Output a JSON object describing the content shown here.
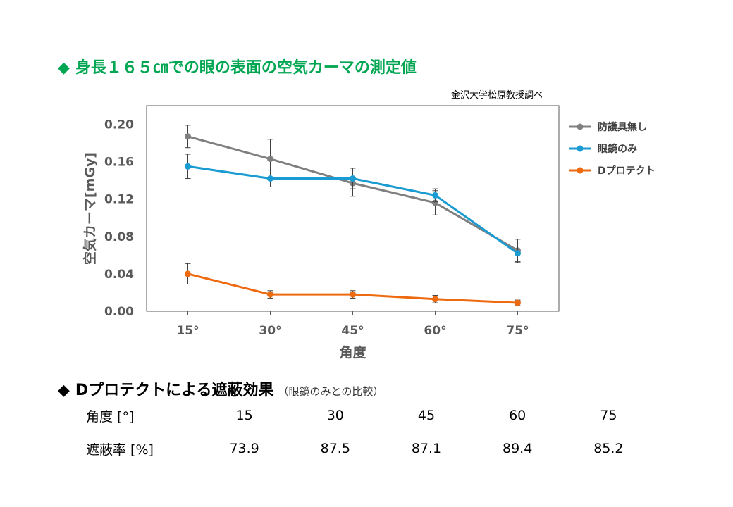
{
  "title": "身長１６５㎝での眼の表面の空気カーマの測定値",
  "title_marker": "◆",
  "source_note": "金沢大学松原教授調べ",
  "colors": {
    "title_green": "#00a651",
    "series_gray": "#808080",
    "series_blue": "#1a9bd1",
    "series_orange": "#ee6a10"
  },
  "chart_data": {
    "type": "line",
    "xlabel": "角度",
    "ylabel": "空気カーマ[mGy]",
    "categories": [
      "15°",
      "30°",
      "45°",
      "60°",
      "75°"
    ],
    "ylim": [
      0,
      0.22
    ],
    "yticks": [
      "0.00",
      "0.04",
      "0.08",
      "0.12",
      "0.16",
      "0.20"
    ],
    "ytick_values": [
      0,
      0.04,
      0.08,
      0.12,
      0.16,
      0.2
    ],
    "legend_position": "right",
    "grid": false,
    "series": [
      {
        "name": "防護具無し",
        "color": "#808080",
        "values": [
          0.187,
          0.163,
          0.137,
          0.116,
          0.065
        ],
        "errors": [
          0.012,
          0.021,
          0.014,
          0.013,
          0.012
        ]
      },
      {
        "name": "眼鏡のみ",
        "color": "#1a9bd1",
        "values": [
          0.155,
          0.142,
          0.142,
          0.124,
          0.062
        ],
        "errors": [
          0.013,
          0.009,
          0.011,
          0.007,
          0.01
        ]
      },
      {
        "name": "Dプロテクト",
        "color": "#ee6a10",
        "values": [
          0.04,
          0.018,
          0.018,
          0.013,
          0.009
        ],
        "errors": [
          0.011,
          0.004,
          0.004,
          0.004,
          0.003
        ]
      }
    ]
  },
  "section2": {
    "marker": "◆",
    "title": "Dプロテクトによる遮蔽効果",
    "subtitle": "（眼鏡のみとの比較）"
  },
  "table": {
    "rows": [
      {
        "label": "角度 [°]",
        "cells": [
          "15",
          "30",
          "45",
          "60",
          "75"
        ]
      },
      {
        "label": "遮蔽率 [%]",
        "cells": [
          "73.9",
          "87.5",
          "87.1",
          "89.4",
          "85.2"
        ]
      }
    ]
  }
}
